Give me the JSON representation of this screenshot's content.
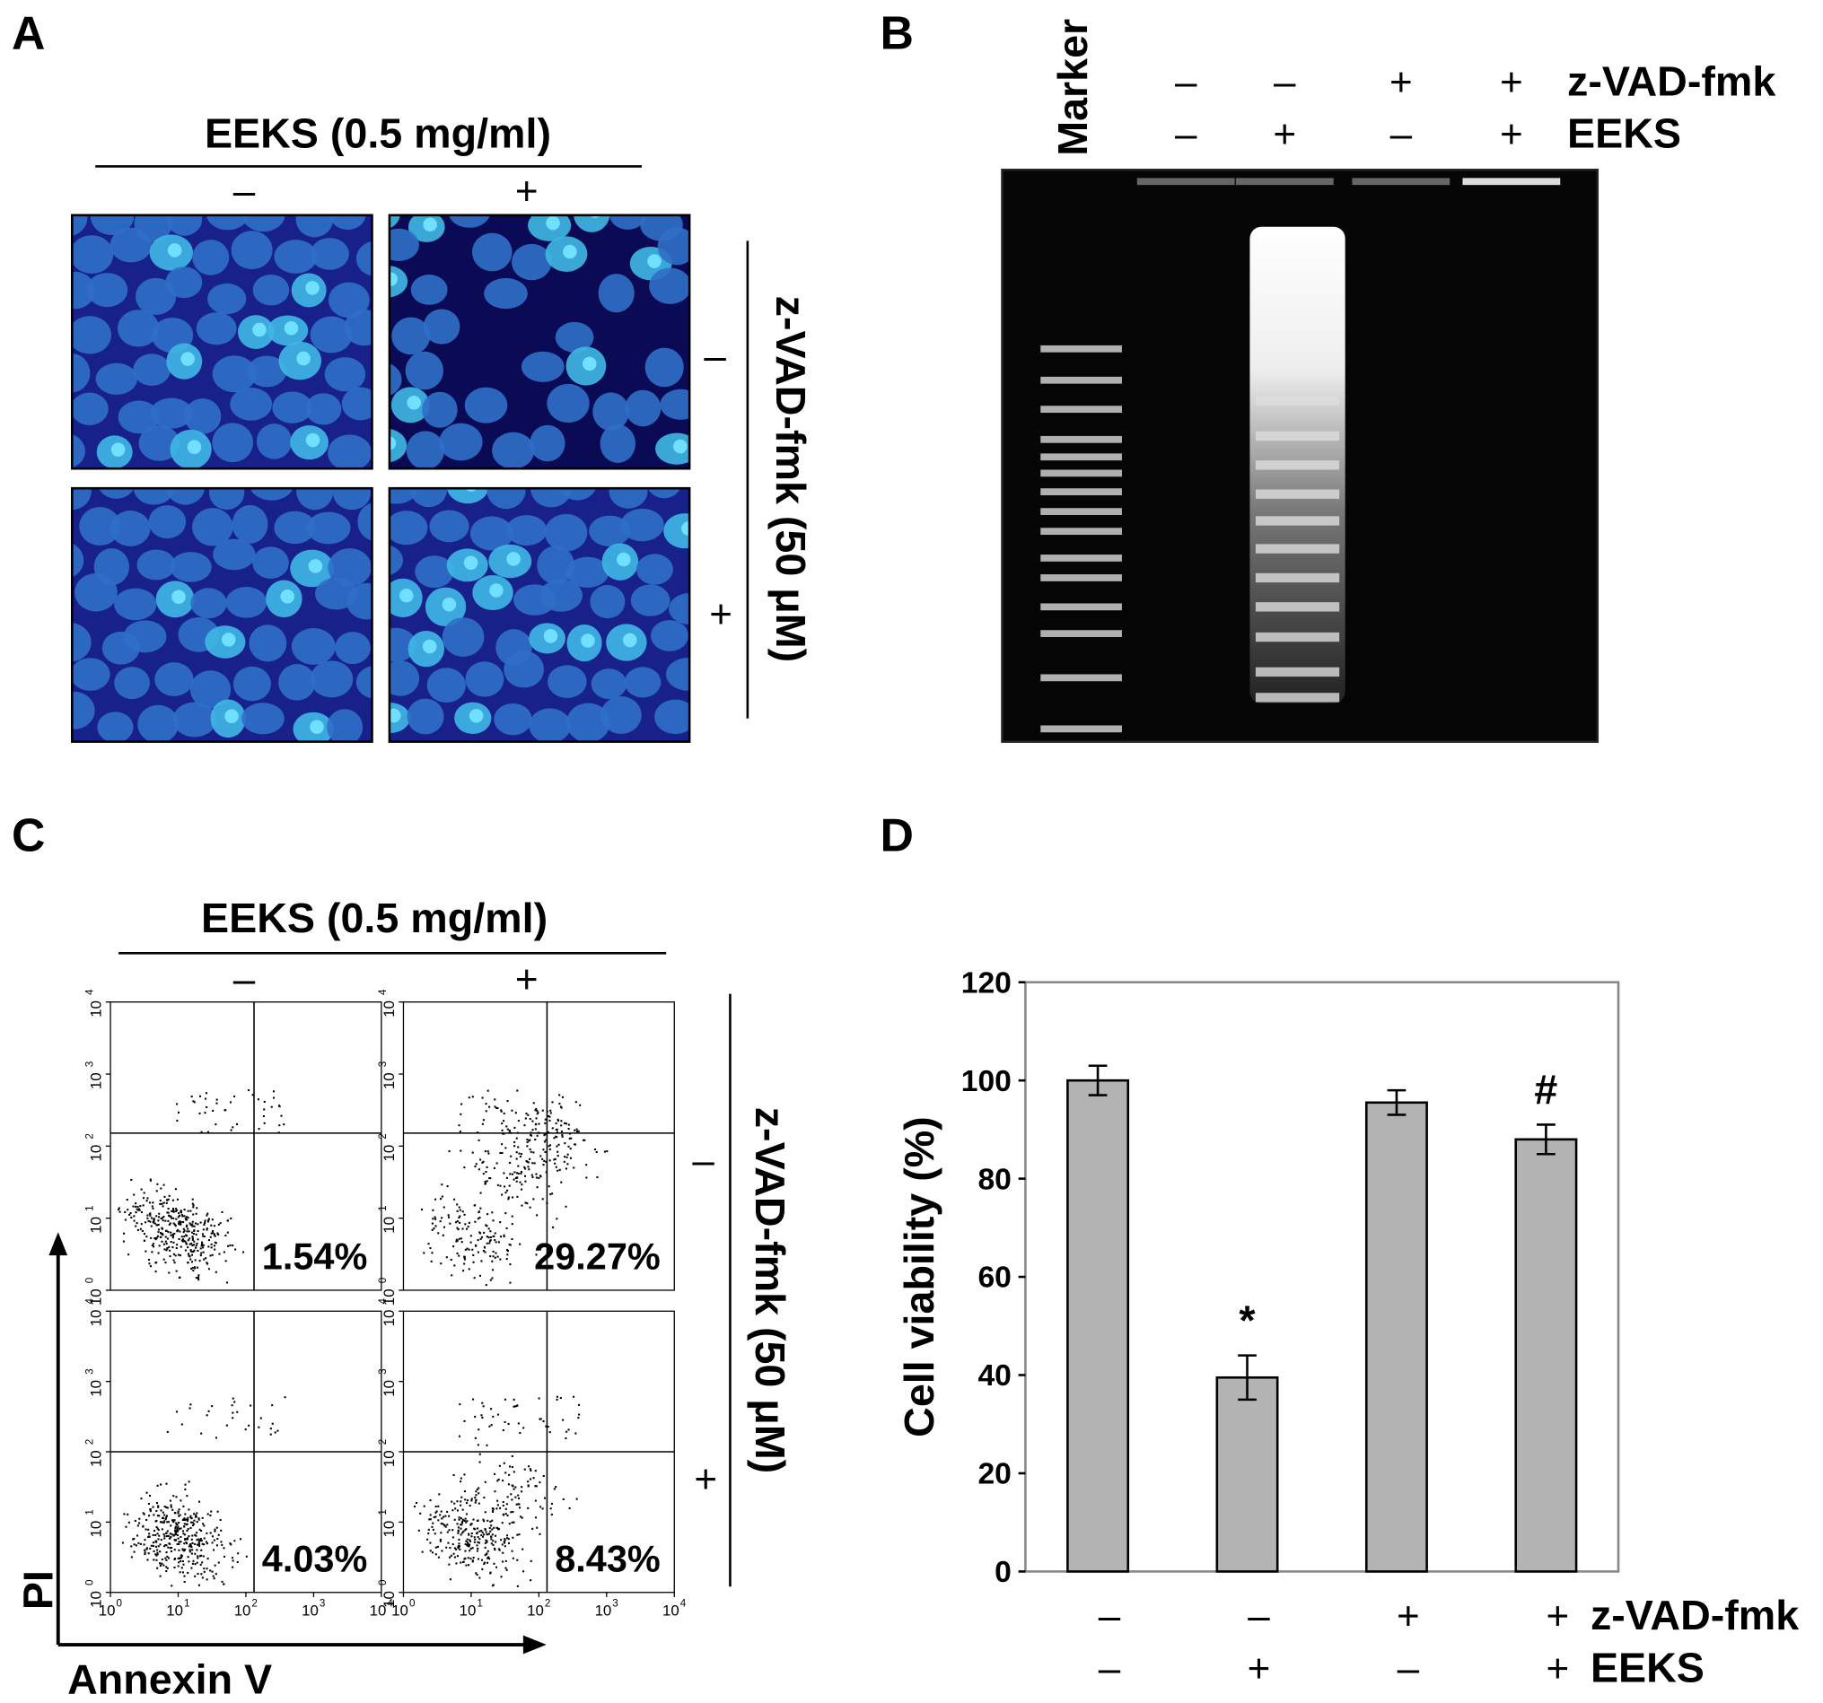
{
  "panel_a": {
    "letter": "A",
    "treatment_label": "EEKS (0.5 mg/ml)",
    "columns": [
      "–",
      "+"
    ],
    "side_label": "z-VAD-fmk (50 μM)",
    "rows": [
      "–",
      "+"
    ]
  },
  "panel_b": {
    "letter": "B",
    "marker_label": "Marker",
    "condition_rows": [
      {
        "name": "z-VAD-fmk",
        "signs": [
          "–",
          "–",
          "+",
          "+"
        ]
      },
      {
        "name": "EEKS",
        "signs": [
          "–",
          "+",
          "–",
          "+"
        ]
      }
    ]
  },
  "panel_c": {
    "letter": "C",
    "treatment_label": "EEKS (0.5 mg/ml)",
    "columns": [
      "–",
      "+"
    ],
    "side_label": "z-VAD-fmk (50 μM)",
    "rows": [
      "–",
      "+"
    ],
    "y_axis_label": "PI",
    "x_axis_label": "Annexin V",
    "log_base": "10",
    "decades": [
      "0",
      "1",
      "2",
      "3",
      "4"
    ],
    "percentages": [
      "1.54%",
      "29.27%",
      "4.03%",
      "8.43%"
    ]
  },
  "chart_data": {
    "type": "bar",
    "letter": "D",
    "ylabel": "Cell viability (%)",
    "values": [
      100,
      39.5,
      95.5,
      88
    ],
    "errors": [
      3,
      4.5,
      2.5,
      3
    ],
    "markers": [
      null,
      "*",
      null,
      "#"
    ],
    "color": "#b3b3b3",
    "ylim": [
      0,
      120
    ],
    "yticks": [
      0,
      20,
      40,
      60,
      80,
      100,
      120
    ],
    "grid": false,
    "condition_rows": [
      {
        "name": "z-VAD-fmk",
        "signs": [
          "–",
          "–",
          "+",
          "+"
        ]
      },
      {
        "name": "EEKS",
        "signs": [
          "–",
          "+",
          "–",
          "+"
        ]
      }
    ]
  }
}
